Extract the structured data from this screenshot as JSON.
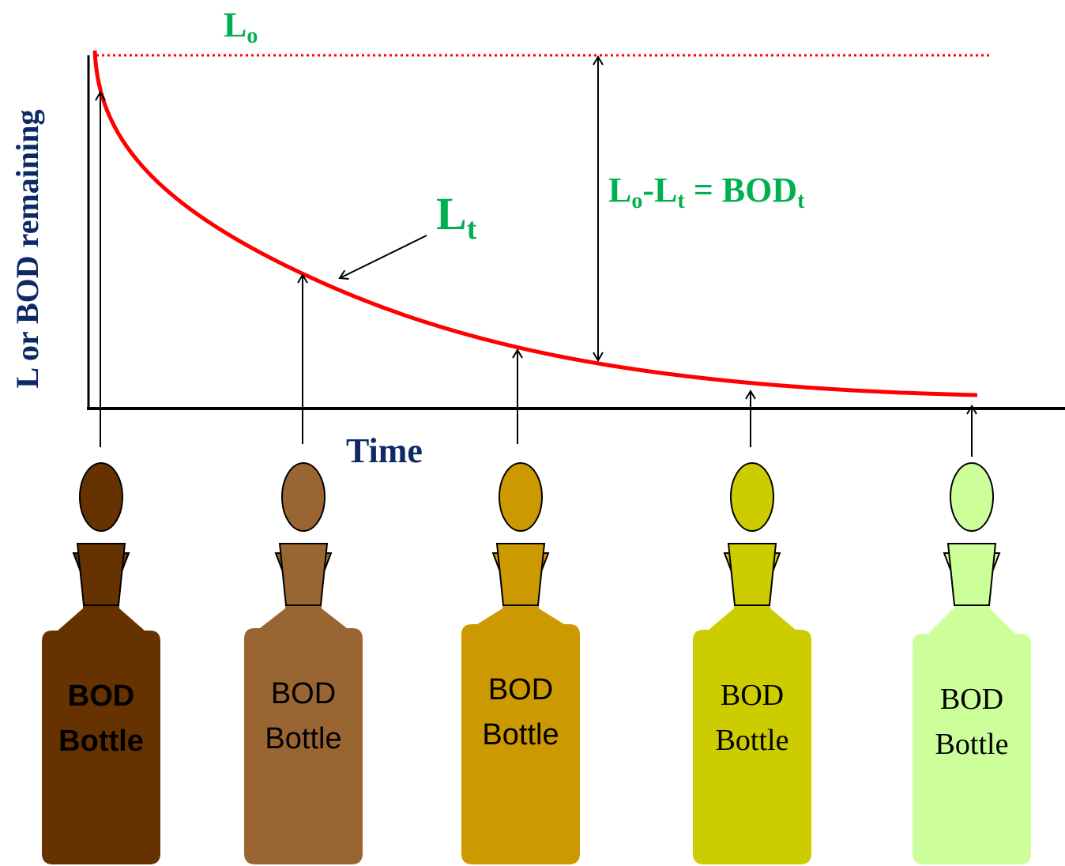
{
  "axes": {
    "y_label": "L or BOD remaining",
    "x_label": "Time"
  },
  "labels": {
    "initial": {
      "main": "L",
      "sub": "o"
    },
    "remaining": {
      "main": "L",
      "sub": "t"
    },
    "equation": [
      "L",
      "o",
      "-L",
      "t",
      " = BOD",
      "t"
    ]
  },
  "bottles": [
    {
      "line1": "BOD",
      "line2": "Bottle",
      "color": "#663300"
    },
    {
      "line1": "BOD",
      "line2": "Bottle",
      "color": "#996633"
    },
    {
      "line1": "BOD",
      "line2": "Bottle",
      "color": "#cc9900"
    },
    {
      "line1": "BOD",
      "line2": "Bottle",
      "color": "#cccc00"
    },
    {
      "line1": "BOD",
      "line2": "Bottle",
      "color": "#ccff99"
    }
  ]
}
